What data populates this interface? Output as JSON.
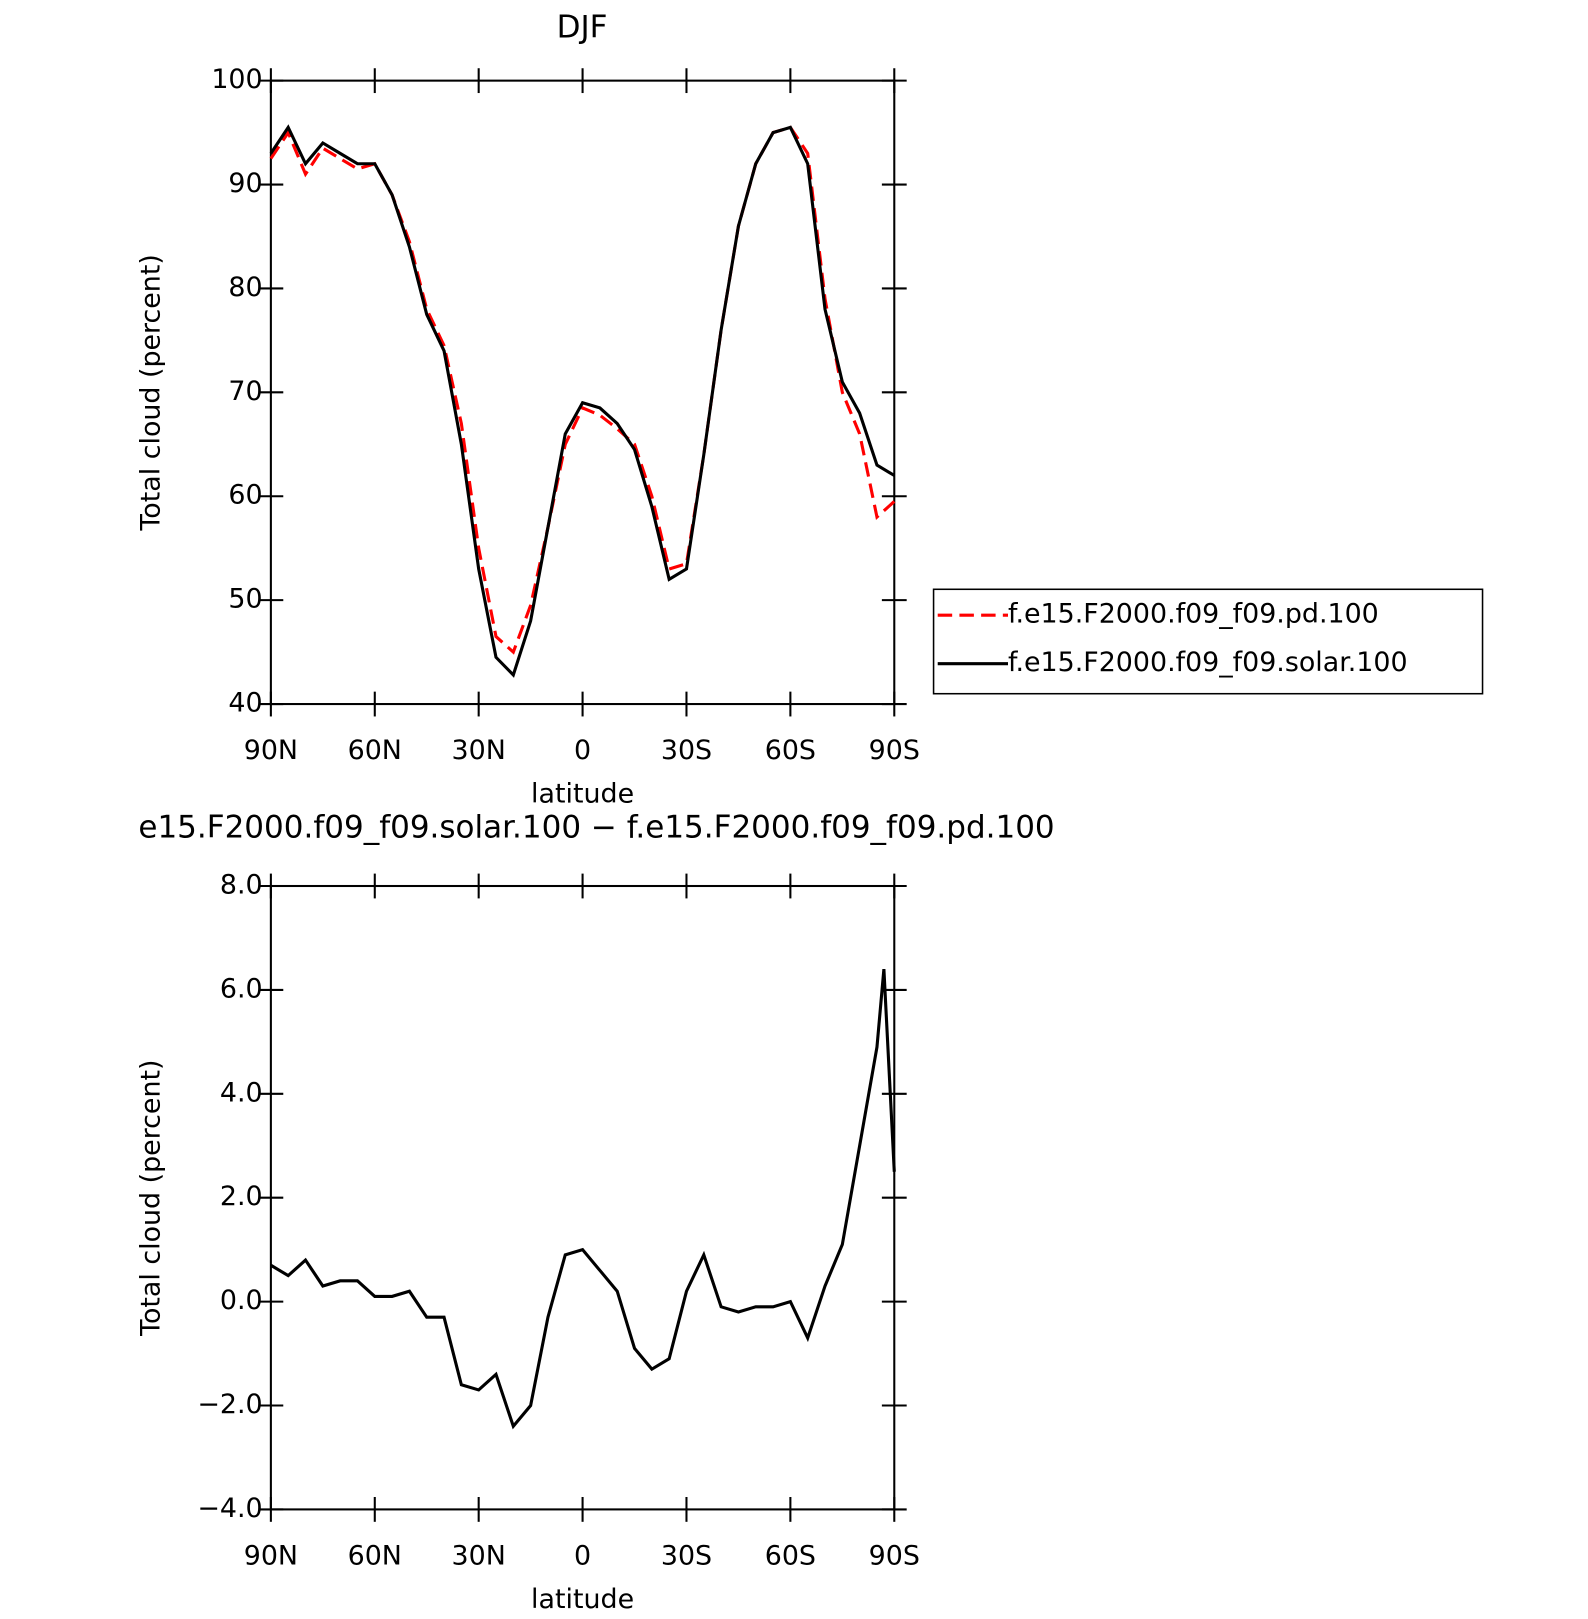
{
  "chart_data": [
    {
      "type": "line",
      "title": "DJF",
      "xlabel": "latitude",
      "ylabel": "Total cloud (percent)",
      "x": [
        90,
        85,
        80,
        75,
        70,
        65,
        60,
        55,
        50,
        45,
        40,
        35,
        30,
        25,
        20,
        15,
        10,
        5,
        0,
        -5,
        -10,
        -15,
        -20,
        -25,
        -30,
        -35,
        -40,
        -45,
        -50,
        -55,
        -60,
        -65,
        -70,
        -75,
        -80,
        -85,
        -90
      ],
      "series": [
        {
          "name": "f.e15.F2000.f09_f09.pd.100",
          "color": "#ff0000",
          "dash": true,
          "values": [
            92.5,
            95,
            91,
            93.5,
            92.5,
            91.5,
            92,
            89,
            84.5,
            78,
            74.5,
            67,
            55,
            46.5,
            45,
            49.5,
            57,
            65,
            68.5,
            67.8,
            66.5,
            65,
            60,
            53,
            53.5,
            64,
            76,
            86,
            92,
            95,
            95.5,
            93,
            79,
            70,
            66,
            58,
            59.5
          ]
        },
        {
          "name": "f.e15.F2000.f09_f09.solar.100",
          "color": "#000000",
          "dash": false,
          "values": [
            93,
            95.5,
            92,
            94,
            93,
            92,
            92,
            89,
            84,
            77.5,
            74,
            65,
            53,
            44.5,
            42.8,
            48,
            57,
            66,
            69,
            68.5,
            67,
            64.5,
            59,
            52,
            53,
            64,
            76,
            86,
            92,
            95,
            95.5,
            92,
            78,
            71,
            68,
            63,
            62
          ]
        }
      ],
      "xlim": [
        90,
        -90
      ],
      "xticks": [
        {
          "value": 90,
          "label": "90N"
        },
        {
          "value": 60,
          "label": "60N"
        },
        {
          "value": 30,
          "label": "30N"
        },
        0,
        {
          "value": -30,
          "label": "30S"
        },
        {
          "value": -60,
          "label": "60S"
        },
        {
          "value": -90,
          "label": "90S"
        }
      ],
      "ylim": [
        40,
        100
      ],
      "yticks": [
        40,
        50,
        60,
        70,
        80,
        90,
        100
      ]
    },
    {
      "type": "line",
      "title": "e15.F2000.f09_f09.solar.100 − f.e15.F2000.f09_f09.pd.100",
      "xlabel": "latitude",
      "ylabel": "Total cloud (percent)",
      "x": [
        90,
        85,
        80,
        75,
        70,
        65,
        60,
        55,
        50,
        45,
        40,
        35,
        30,
        25,
        20,
        15,
        10,
        5,
        0,
        -5,
        -10,
        -15,
        -20,
        -25,
        -30,
        -35,
        -40,
        -45,
        -50,
        -55,
        -60,
        -65,
        -70,
        -75,
        -80,
        -85,
        -87,
        -90
      ],
      "series": [
        {
          "color": "#000000",
          "dash": false,
          "values": [
            0.7,
            0.5,
            0.8,
            0.3,
            0.4,
            0.4,
            0.1,
            0.1,
            0.2,
            -0.3,
            -0.3,
            -1.6,
            -1.7,
            -1.4,
            -2.4,
            -2.0,
            -0.3,
            0.9,
            1.0,
            0.6,
            0.2,
            -0.9,
            -1.3,
            -1.1,
            0.2,
            0.9,
            -0.1,
            -0.2,
            -0.1,
            -0.1,
            0,
            -0.7,
            0.3,
            1.1,
            3.0,
            4.9,
            6.4,
            2.5
          ]
        }
      ],
      "xlim": [
        90,
        -90
      ],
      "xticks": [
        {
          "value": 90,
          "label": "90N"
        },
        {
          "value": 60,
          "label": "60N"
        },
        {
          "value": 30,
          "label": "30N"
        },
        0,
        {
          "value": -30,
          "label": "30S"
        },
        {
          "value": -60,
          "label": "60S"
        },
        {
          "value": -90,
          "label": "90S"
        }
      ],
      "ylim": [
        -4,
        8
      ],
      "yticks": [
        {
          "value": -4,
          "label": "−4.0"
        },
        {
          "value": -2,
          "label": "−2.0"
        },
        {
          "value": 0,
          "label": "0.0"
        },
        {
          "value": 2,
          "label": "2.0"
        },
        {
          "value": 4,
          "label": "4.0"
        },
        {
          "value": 6,
          "label": "6.0"
        },
        {
          "value": 8,
          "label": "8.0"
        }
      ]
    }
  ]
}
